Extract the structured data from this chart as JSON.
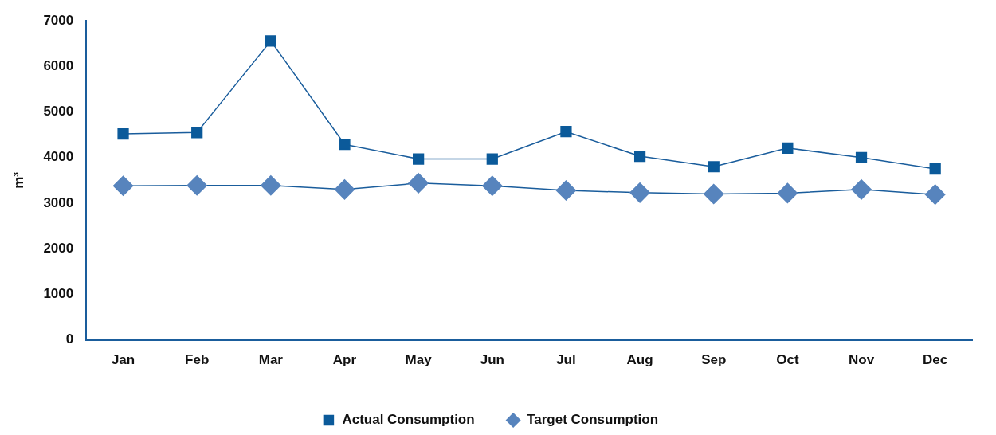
{
  "chart_data": {
    "type": "line",
    "ylabel": "m³",
    "categories": [
      "Jan",
      "Feb",
      "Mar",
      "Apr",
      "May",
      "Jun",
      "Jul",
      "Aug",
      "Sep",
      "Oct",
      "Nov",
      "Dec"
    ],
    "series": [
      {
        "name": "Actual Consumption",
        "color": "#0b5a9a",
        "marker": "square",
        "values": [
          4520,
          4550,
          6560,
          4290,
          3970,
          3970,
          4570,
          4030,
          3800,
          4210,
          4000,
          3750
        ]
      },
      {
        "name": "Target Consumption",
        "color": "#5784bd",
        "marker": "diamond",
        "values": [
          3380,
          3390,
          3390,
          3300,
          3440,
          3380,
          3280,
          3230,
          3200,
          3220,
          3300,
          3190
        ]
      }
    ],
    "ylim": [
      0,
      7000
    ],
    "yticks": [
      0,
      1000,
      2000,
      3000,
      4000,
      5000,
      6000,
      7000
    ],
    "grid": false,
    "legend": "bottom",
    "line_style": "solid"
  }
}
